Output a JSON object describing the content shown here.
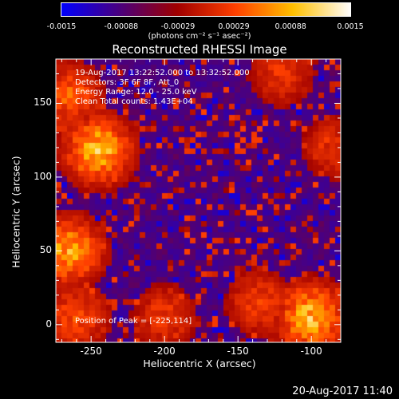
{
  "chart_data": {
    "type": "heatmap",
    "title": "Reconstructed RHESSI Image",
    "xlabel": "Heliocentric X (arcsec)",
    "ylabel": "Heliocentric Y (arcsec)",
    "xlim": [
      -274,
      -80
    ],
    "ylim": [
      -12,
      180
    ],
    "x_ticks": [
      "-250",
      "-200",
      "-150",
      "-100"
    ],
    "x_tick_values": [
      -250,
      -200,
      -150,
      -100
    ],
    "y_ticks": [
      "0",
      "50",
      "100",
      "150"
    ],
    "y_tick_values": [
      0,
      50,
      100,
      150
    ],
    "colorbar": {
      "ticks": [
        "-0.0015",
        "-0.00088",
        "-0.00029",
        "0.00029",
        "0.00088",
        "0.0015"
      ],
      "tick_values": [
        -0.0015,
        -0.00088,
        -0.00029,
        0.00029,
        0.00088,
        0.0015
      ],
      "range": [
        -0.0015,
        0.0015
      ],
      "units": "(photons cm⁻² s⁻¹ asec⁻²)",
      "colormap": [
        "#0000ff",
        "#4a0080",
        "#a00000",
        "#ff4000",
        "#ffc000",
        "#ffffff"
      ]
    },
    "annotations": [
      "19-Aug-2017 13:22:52.000 to 13:32:52.000",
      "Detectors: 3F 6F 8F, Att_0",
      "Energy Range: 12.0 - 25.0 keV",
      "Clean     Total counts: 1.43E+04"
    ],
    "peak_label": "Position of Peak = [-225,114]",
    "peak_position": [
      -225,
      114
    ],
    "bright_regions": [
      {
        "x": -245,
        "y": 118,
        "intensity": 0.95
      },
      {
        "x": -265,
        "y": 155,
        "intensity": 0.6
      },
      {
        "x": -265,
        "y": 50,
        "intensity": 0.85
      },
      {
        "x": -260,
        "y": 5,
        "intensity": 0.55
      },
      {
        "x": -100,
        "y": 5,
        "intensity": 0.95
      },
      {
        "x": -135,
        "y": 15,
        "intensity": 0.5
      },
      {
        "x": -200,
        "y": 5,
        "intensity": 0.45
      },
      {
        "x": -120,
        "y": 170,
        "intensity": 0.45
      },
      {
        "x": -85,
        "y": 120,
        "intensity": 0.4
      }
    ]
  },
  "timestamp": "20-Aug-2017 11:40"
}
